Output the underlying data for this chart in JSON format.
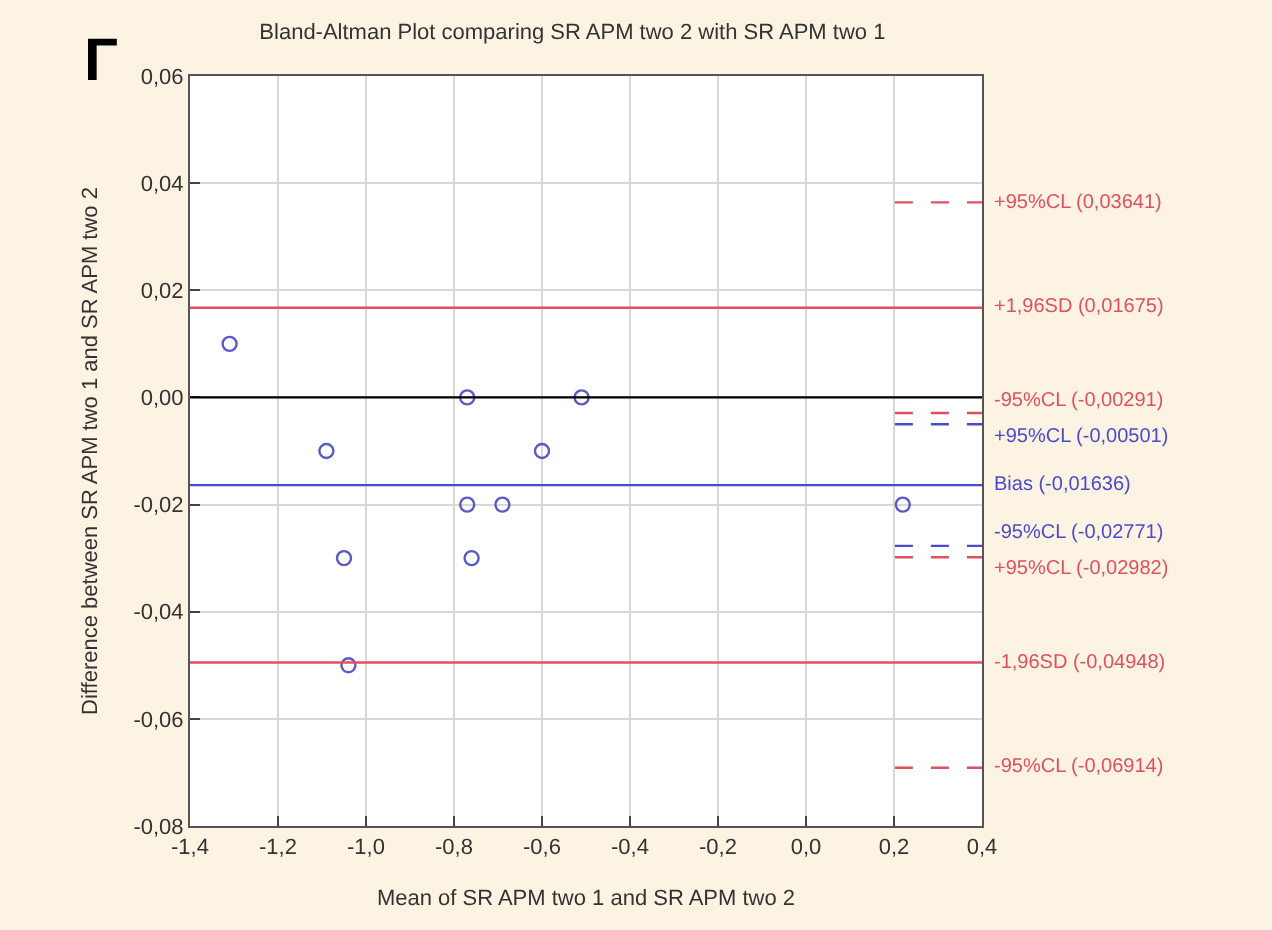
{
  "chart_data": {
    "type": "scatter",
    "title": "Bland-Altman Plot comparing SR APM two 2 with SR APM two 1",
    "xlabel": "Mean of SR APM two 1 and SR APM two 2",
    "ylabel": "Difference between SR APM two 1 and SR APM two 2",
    "annotations": [
      "Г"
    ],
    "series": [
      {
        "color": "#5a5ac8",
        "x": [
          -1.31,
          -1.09,
          -1.05,
          -1.04,
          -0.77,
          -0.77,
          -0.76,
          -0.69,
          -0.6,
          -0.51,
          0.22
        ],
        "values": [
          0.01,
          -0.01,
          -0.03,
          -0.05,
          0,
          -0.02,
          -0.03,
          -0.02,
          -0.01,
          0,
          -0.02
        ]
      }
    ],
    "marker": "circle",
    "xlim": [
      -1.4,
      0.4
    ],
    "ylim": [
      -0.08,
      0.06
    ],
    "xticks": [
      {
        "value": -1.4,
        "label": "-1,4"
      },
      {
        "value": -1.2,
        "label": "-1,2"
      },
      {
        "value": -1.0,
        "label": "-1,0"
      },
      {
        "value": -0.8,
        "label": "-0,8"
      },
      {
        "value": -0.6,
        "label": "-0,6"
      },
      {
        "value": -0.4,
        "label": "-0,4"
      },
      {
        "value": -0.2,
        "label": "-0,2"
      },
      {
        "value": 0,
        "label": "0,0"
      },
      {
        "value": 0.2,
        "label": "0,2"
      },
      {
        "value": 0.4,
        "label": "0,4"
      }
    ],
    "yticks": [
      {
        "value": -0.08,
        "label": "-0,08"
      },
      {
        "value": -0.06,
        "label": "-0,06"
      },
      {
        "value": -0.04,
        "label": "-0,04"
      },
      {
        "value": -0.02,
        "label": "-0,02"
      },
      {
        "value": 0,
        "label": "0,00"
      },
      {
        "value": 0.02,
        "label": "0,02"
      },
      {
        "value": 0.04,
        "label": "0,04"
      },
      {
        "value": 0.06,
        "label": "0,06"
      }
    ],
    "grid": true,
    "ref_lines": [
      {
        "axis": "y",
        "value": 0,
        "color": "#000000",
        "line_style": "solid"
      },
      {
        "axis": "y",
        "value": 0.03641,
        "label": "+95%CL (0,03641)",
        "color": "#e05060",
        "line_style": "dashed"
      },
      {
        "axis": "y",
        "value": 0.01675,
        "label": "+1,96SD (0,01675)",
        "color": "#e05060",
        "line_style": "solid"
      },
      {
        "axis": "y",
        "value": -0.00291,
        "label": "-95%CL (-0,00291)",
        "color": "#e05060",
        "line_style": "dashed"
      },
      {
        "axis": "y",
        "value": -0.00501,
        "label": "+95%CL (-0,00501)",
        "color": "#4a4ad0",
        "line_style": "dashed"
      },
      {
        "axis": "y",
        "value": -0.01636,
        "label": "Bias (-0,01636)",
        "color": "#4a4ad0",
        "line_style": "solid"
      },
      {
        "axis": "y",
        "value": -0.02771,
        "label": "-95%CL (-0,02771)",
        "color": "#4a4ad0",
        "line_style": "dashed"
      },
      {
        "axis": "y",
        "value": -0.02982,
        "label": "+95%CL (-0,02982)",
        "color": "#e05060",
        "line_style": "dashed"
      },
      {
        "axis": "y",
        "value": -0.04948,
        "label": "-1,96SD (-0,04948)",
        "color": "#e05060",
        "line_style": "solid"
      },
      {
        "axis": "y",
        "value": -0.06914,
        "label": "-95%CL (-0,06914)",
        "color": "#e05060",
        "line_style": "dashed"
      }
    ]
  }
}
